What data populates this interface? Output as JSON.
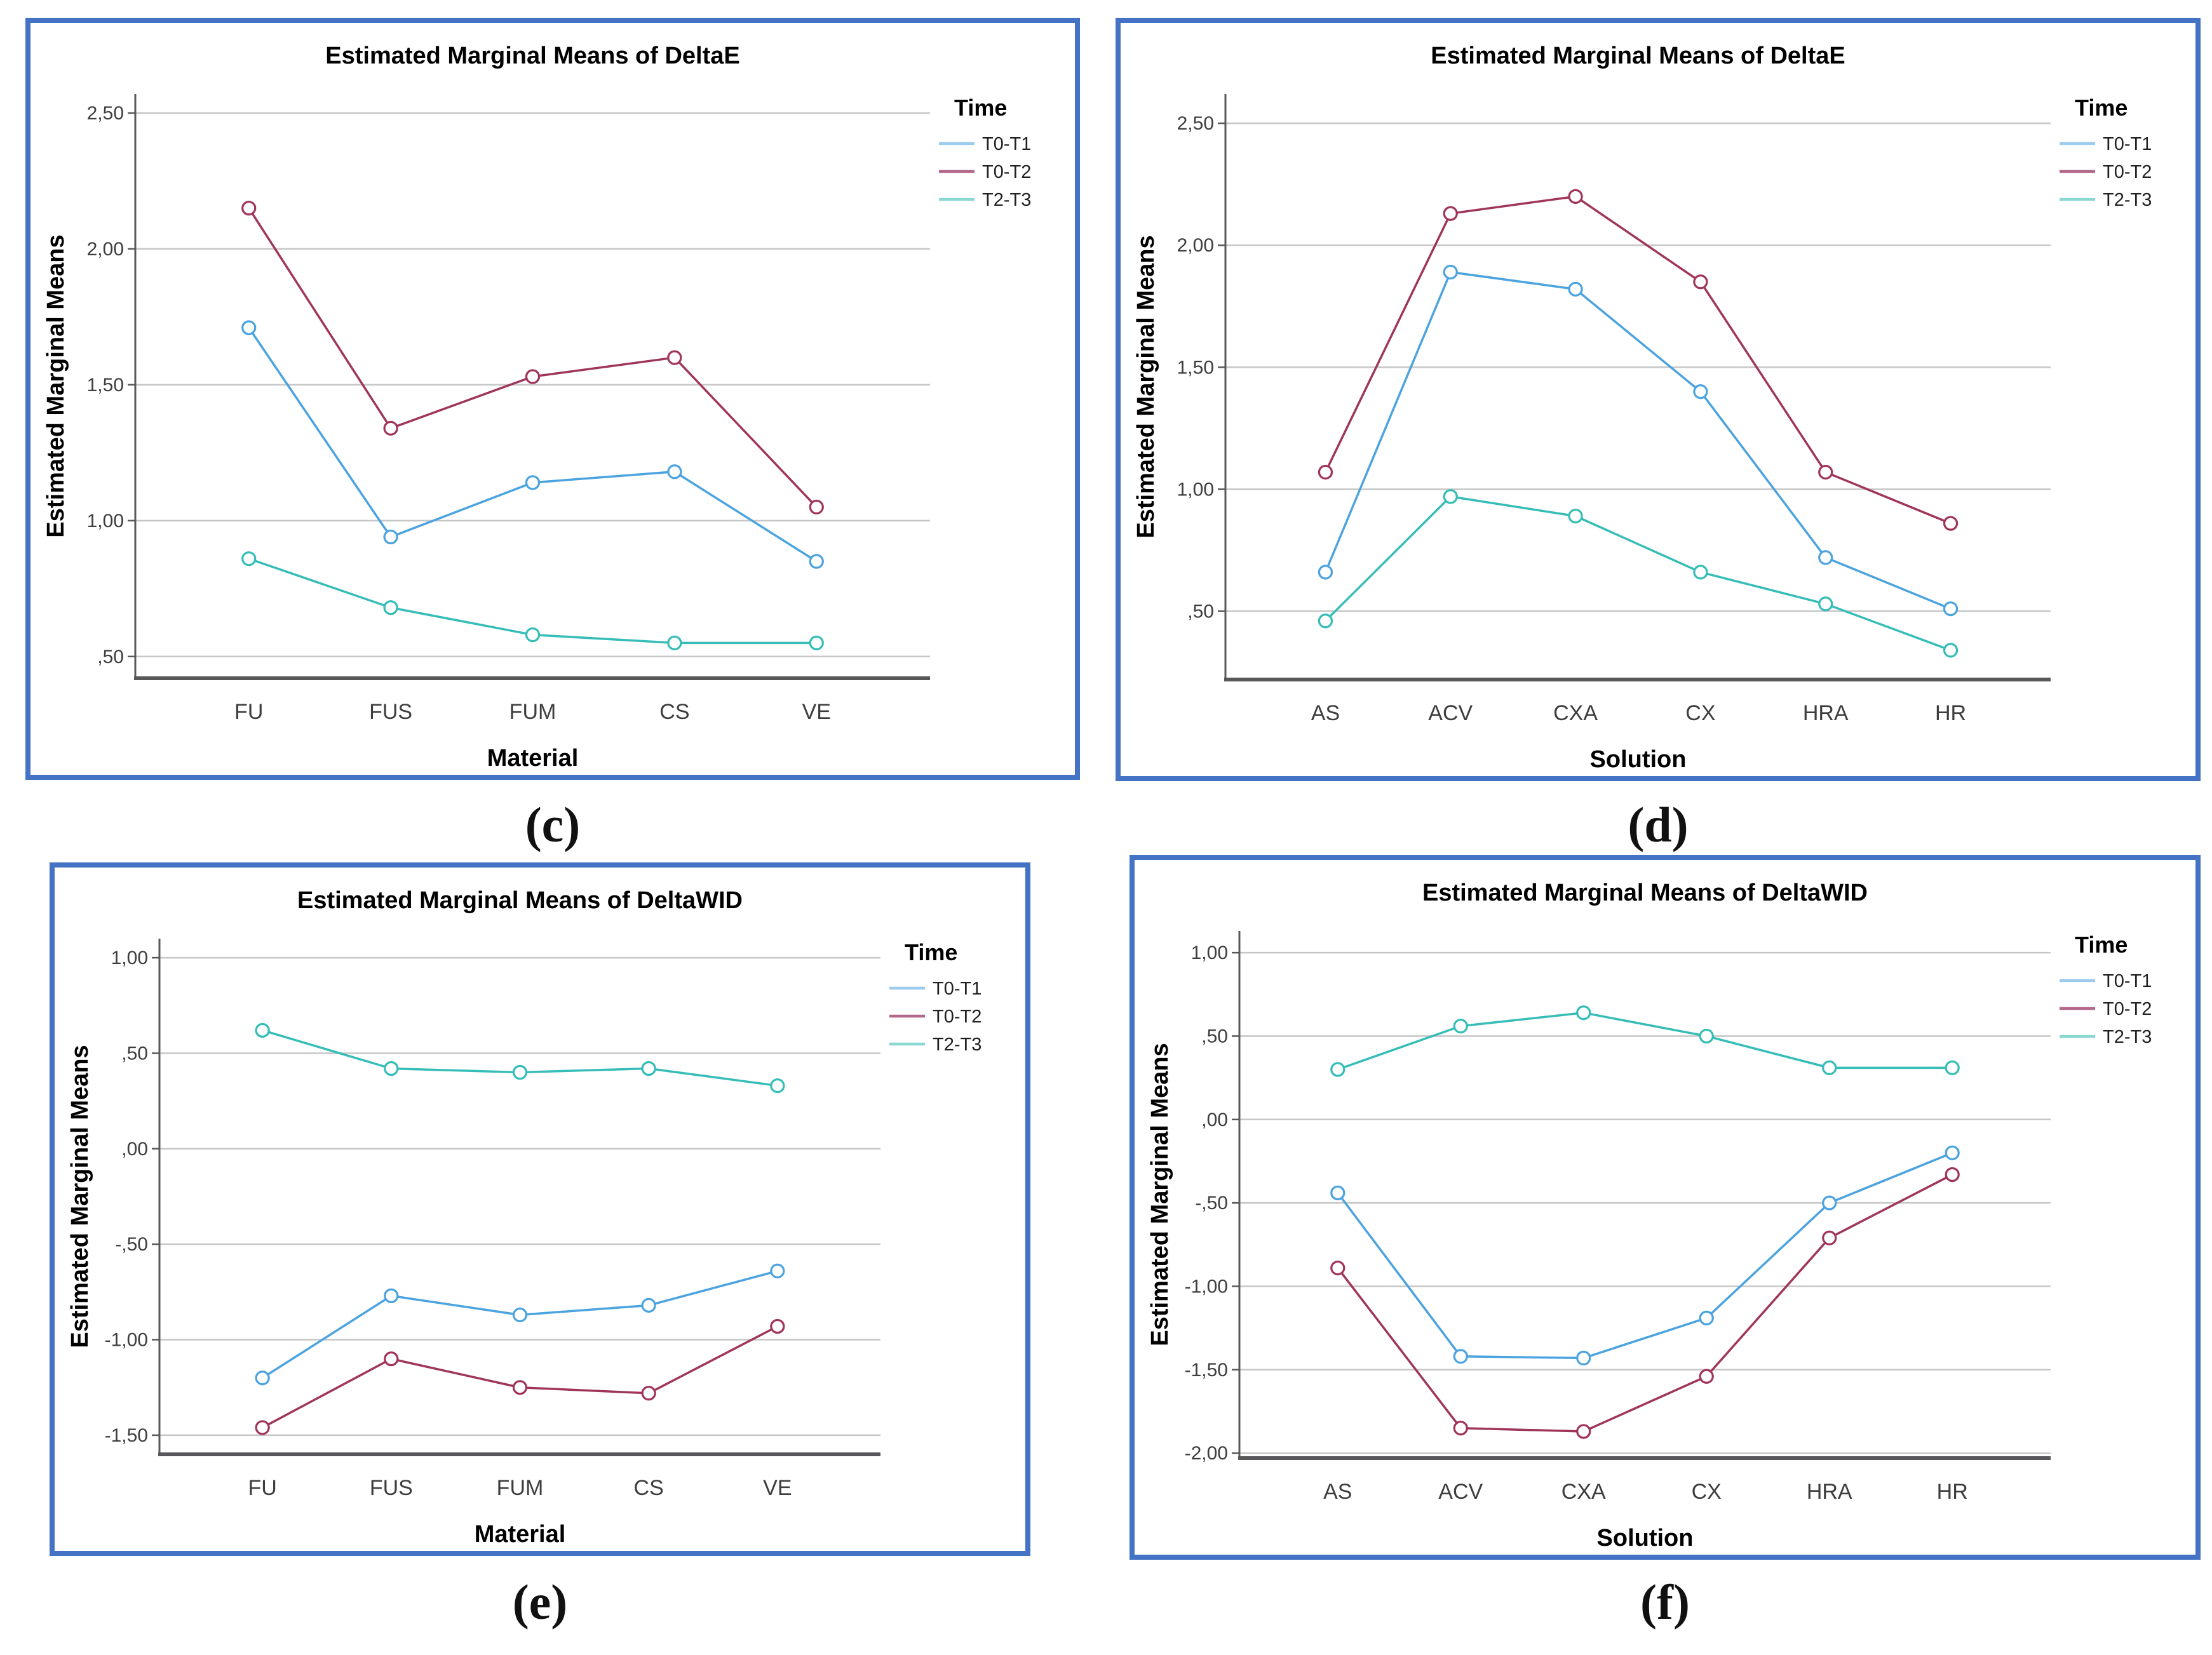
{
  "figure": {
    "captions": {
      "c": "(c)",
      "d": "(d)",
      "e": "(e)",
      "f": "(f)"
    }
  },
  "palette": {
    "panel_border": "#4472C4",
    "gridline": "#C6C6C6",
    "axis": "#58585A",
    "title_text": "#000000",
    "tick_text": "#3D3D3D",
    "legend_text": "#202020",
    "marker_fill": "#FFFFFF",
    "series": {
      "T0-T1": "#4BA3DF",
      "T0-T2": "#A0355C",
      "T2-T3": "#36BDB8"
    },
    "legend_swatch": {
      "T0-T1": "#9CCBEE",
      "T0-T2": "#B2688B",
      "T2-T3": "#8AD8D2"
    }
  },
  "chart_data": [
    {
      "id": "c",
      "type": "line",
      "title": "Estimated Marginal Means of DeltaE",
      "ylabel": "Estimated Marginal Means",
      "xlabel": "Material",
      "categories": [
        "FU",
        "FUS",
        "FUM",
        "CS",
        "VE"
      ],
      "yticks": [
        {
          "label": "2,50",
          "value": 2.5
        },
        {
          "label": "2,00",
          "value": 2.0
        },
        {
          "label": "1,50",
          "value": 1.5
        },
        {
          "label": "1,00",
          "value": 1.0
        },
        {
          "label": ",50",
          "value": 0.5
        }
      ],
      "ylim": [
        0.42,
        2.57
      ],
      "grid": true,
      "legend_title": "Time",
      "legend_position": "right",
      "series": [
        {
          "name": "T0-T1",
          "values": [
            1.71,
            0.94,
            1.14,
            1.18,
            0.85
          ]
        },
        {
          "name": "T0-T2",
          "values": [
            2.15,
            1.34,
            1.53,
            1.6,
            1.05
          ]
        },
        {
          "name": "T2-T3",
          "values": [
            0.86,
            0.68,
            0.58,
            0.55,
            0.55
          ]
        }
      ]
    },
    {
      "id": "d",
      "type": "line",
      "title": "Estimated Marginal Means of DeltaE",
      "ylabel": "Estimated Marginal Means",
      "xlabel": "Solution",
      "categories": [
        "AS",
        "ACV",
        "CXA",
        "CX",
        "HRA",
        "HR"
      ],
      "yticks": [
        {
          "label": "2,50",
          "value": 2.5
        },
        {
          "label": "2,00",
          "value": 2.0
        },
        {
          "label": "1,50",
          "value": 1.5
        },
        {
          "label": "1,00",
          "value": 1.0
        },
        {
          "label": ",50",
          "value": 0.5
        }
      ],
      "ylim": [
        0.22,
        2.62
      ],
      "grid": true,
      "legend_title": "Time",
      "legend_position": "right",
      "series": [
        {
          "name": "T0-T1",
          "values": [
            0.66,
            1.89,
            1.82,
            1.4,
            0.72,
            0.51
          ]
        },
        {
          "name": "T0-T2",
          "values": [
            1.07,
            2.13,
            2.2,
            1.85,
            1.07,
            0.86
          ]
        },
        {
          "name": "T2-T3",
          "values": [
            0.46,
            0.97,
            0.89,
            0.66,
            0.53,
            0.34
          ]
        }
      ]
    },
    {
      "id": "e",
      "type": "line",
      "title": "Estimated Marginal Means of DeltaWID",
      "ylabel": "Estimated Marginal Means",
      "xlabel": "Material",
      "categories": [
        "FU",
        "FUS",
        "FUM",
        "CS",
        "VE"
      ],
      "yticks": [
        {
          "label": "1,00",
          "value": 1.0
        },
        {
          "label": ",50",
          "value": 0.5
        },
        {
          "label": ",00",
          "value": 0.0
        },
        {
          "label": "-,50",
          "value": -0.5
        },
        {
          "label": "-1,00",
          "value": -1.0
        },
        {
          "label": "-1,50",
          "value": -1.5
        }
      ],
      "ylim": [
        -1.6,
        1.1
      ],
      "grid": true,
      "legend_title": "Time",
      "legend_position": "right",
      "series": [
        {
          "name": "T0-T1",
          "values": [
            -1.2,
            -0.77,
            -0.87,
            -0.82,
            -0.64
          ]
        },
        {
          "name": "T0-T2",
          "values": [
            -1.46,
            -1.1,
            -1.25,
            -1.28,
            -0.93
          ]
        },
        {
          "name": "T2-T3",
          "values": [
            0.62,
            0.42,
            0.4,
            0.42,
            0.33
          ]
        }
      ]
    },
    {
      "id": "f",
      "type": "line",
      "title": "Estimated Marginal Means of DeltaWID",
      "ylabel": "Estimated Marginal Means",
      "xlabel": "Solution",
      "categories": [
        "AS",
        "ACV",
        "CXA",
        "CX",
        "HRA",
        "HR"
      ],
      "yticks": [
        {
          "label": "1,00",
          "value": 1.0
        },
        {
          "label": ",50",
          "value": 0.5
        },
        {
          "label": ",00",
          "value": 0.0
        },
        {
          "label": "-,50",
          "value": -0.5
        },
        {
          "label": "-1,00",
          "value": -1.0
        },
        {
          "label": "-1,50",
          "value": -1.5
        },
        {
          "label": "-2,00",
          "value": -2.0
        }
      ],
      "ylim": [
        -2.03,
        1.13
      ],
      "grid": true,
      "legend_title": "Time",
      "legend_position": "right",
      "series": [
        {
          "name": "T0-T1",
          "values": [
            -0.44,
            -1.42,
            -1.43,
            -1.19,
            -0.5,
            -0.2
          ]
        },
        {
          "name": "T0-T2",
          "values": [
            -0.89,
            -1.85,
            -1.87,
            -1.54,
            -0.71,
            -0.33
          ]
        },
        {
          "name": "T2-T3",
          "values": [
            0.3,
            0.56,
            0.64,
            0.5,
            0.31,
            0.31
          ]
        }
      ]
    }
  ]
}
